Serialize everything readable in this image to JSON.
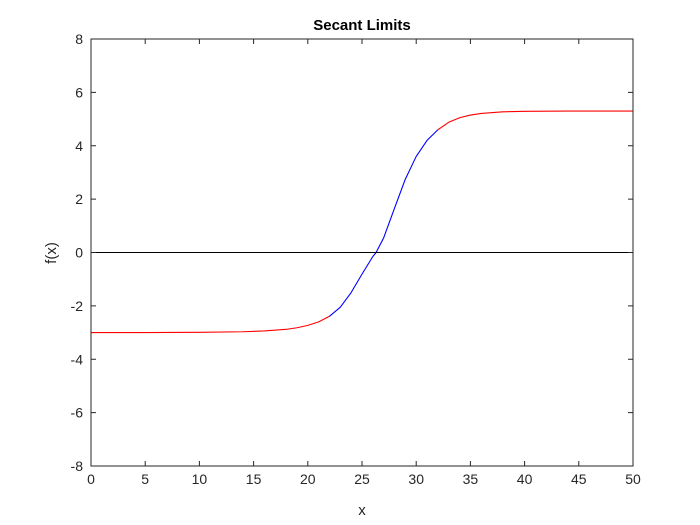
{
  "chart_data": {
    "type": "line",
    "title": "Secant Limits",
    "xlabel": "x",
    "ylabel": "f(x)",
    "xlim": [
      0,
      50
    ],
    "ylim": [
      -8,
      8
    ],
    "xticks": [
      0,
      5,
      10,
      15,
      20,
      25,
      30,
      35,
      40,
      45,
      50
    ],
    "yticks": [
      -8,
      -6,
      -4,
      -2,
      0,
      2,
      4,
      6,
      8
    ],
    "grid": false,
    "box": true,
    "series": [
      {
        "color": "#ff0000",
        "x": [
          0,
          5,
          10,
          14,
          16,
          18,
          19,
          20,
          21,
          22
        ],
        "y": [
          -3.0,
          -3.0,
          -2.99,
          -2.97,
          -2.94,
          -2.88,
          -2.82,
          -2.73,
          -2.6,
          -2.39
        ]
      },
      {
        "color": "#0000ff",
        "x": [
          22,
          23,
          24,
          25,
          26,
          26.3,
          27,
          28,
          29,
          30,
          31,
          32
        ],
        "y": [
          -2.39,
          -2.05,
          -1.5,
          -0.81,
          -0.15,
          0.0,
          0.55,
          1.66,
          2.75,
          3.6,
          4.2,
          4.6
        ]
      },
      {
        "color": "#ff0000",
        "x": [
          32,
          33,
          34,
          35,
          36,
          38,
          40,
          44,
          50
        ],
        "y": [
          4.6,
          4.88,
          5.05,
          5.15,
          5.21,
          5.27,
          5.29,
          5.3,
          5.3
        ]
      },
      {
        "color": "#000000",
        "x": [
          0,
          50
        ],
        "y": [
          0,
          0
        ]
      }
    ]
  }
}
